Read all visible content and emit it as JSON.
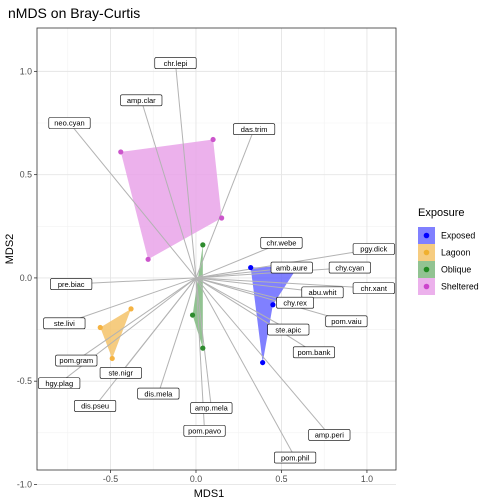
{
  "chart_data": {
    "type": "scatter",
    "title": "nMDS on Bray-Curtis",
    "xlabel": "MDS1",
    "ylabel": "MDS2",
    "xlim": [
      -0.93,
      1.17
    ],
    "ylim": [
      -0.93,
      1.21
    ],
    "xticks": [
      -0.5,
      0.0,
      0.5,
      1.0
    ],
    "xtick_labels": [
      "-0.5",
      "0.0",
      "0.5",
      "1.0"
    ],
    "yticks": [
      -1.0,
      -0.5,
      0.0,
      0.5,
      1.0
    ],
    "ytick_labels": [
      "-1.0",
      "-0.5",
      "0.0",
      "0.5",
      "1.0"
    ],
    "grid": true,
    "legend": {
      "title": "Exposure",
      "placement": "right",
      "entries": [
        {
          "label": "Exposed",
          "color": "#0000ff"
        },
        {
          "label": "Lagoon",
          "color": "#f0b030"
        },
        {
          "label": "Oblique",
          "color": "#228b22"
        },
        {
          "label": "Sheltered",
          "color": "#cc44cc"
        }
      ]
    },
    "series": [
      {
        "name": "Exposed",
        "color": "#0000ff",
        "hull_color": "#6a6aff",
        "points": [
          [
            0.32,
            0.05
          ],
          [
            0.6,
            0.06
          ],
          [
            0.45,
            -0.13
          ],
          [
            0.39,
            -0.41
          ]
        ]
      },
      {
        "name": "Lagoon",
        "color": "#f5b342",
        "hull_color": "#f5c36a",
        "points": [
          [
            -0.38,
            -0.15
          ],
          [
            -0.56,
            -0.24
          ],
          [
            -0.49,
            -0.39
          ]
        ]
      },
      {
        "name": "Oblique",
        "color": "#2e8b2e",
        "hull_color": "#7fb87f",
        "points": [
          [
            0.04,
            0.16
          ],
          [
            -0.02,
            -0.18
          ],
          [
            0.04,
            -0.34
          ]
        ]
      },
      {
        "name": "Sheltered",
        "color": "#cc55cc",
        "hull_color": "#e9a3e9",
        "points": [
          [
            -0.44,
            0.61
          ],
          [
            0.1,
            0.67
          ],
          [
            0.15,
            0.29
          ],
          [
            -0.28,
            0.09
          ]
        ]
      }
    ],
    "species": [
      {
        "label": "chr.lepi",
        "x": -0.12,
        "y": 1.04
      },
      {
        "label": "amp.clar",
        "x": -0.32,
        "y": 0.86
      },
      {
        "label": "neo.cyan",
        "x": -0.74,
        "y": 0.75
      },
      {
        "label": "das.trim",
        "x": 0.34,
        "y": 0.72
      },
      {
        "label": "chr.webe",
        "x": 0.5,
        "y": 0.17
      },
      {
        "label": "pgy.dick",
        "x": 1.04,
        "y": 0.14
      },
      {
        "label": "amb.aure",
        "x": 0.56,
        "y": 0.05
      },
      {
        "label": "chy.cyan",
        "x": 0.9,
        "y": 0.05
      },
      {
        "label": "abu.whit",
        "x": 0.74,
        "y": -0.07
      },
      {
        "label": "chr.xant",
        "x": 1.04,
        "y": -0.05
      },
      {
        "label": "chy.rex",
        "x": 0.58,
        "y": -0.12
      },
      {
        "label": "pom.vaiu",
        "x": 0.88,
        "y": -0.21
      },
      {
        "label": "ste.apic",
        "x": 0.54,
        "y": -0.25
      },
      {
        "label": "pom.bank",
        "x": 0.69,
        "y": -0.36
      },
      {
        "label": "pre.biac",
        "x": -0.73,
        "y": -0.03
      },
      {
        "label": "ste.livi",
        "x": -0.77,
        "y": -0.22
      },
      {
        "label": "pom.gram",
        "x": -0.7,
        "y": -0.4
      },
      {
        "label": "hgy.plag",
        "x": -0.8,
        "y": -0.51
      },
      {
        "label": "ste.nigr",
        "x": -0.44,
        "y": -0.46
      },
      {
        "label": "dis.mela",
        "x": -0.22,
        "y": -0.56
      },
      {
        "label": "dis.pseu",
        "x": -0.59,
        "y": -0.62
      },
      {
        "label": "amp.mela",
        "x": 0.09,
        "y": -0.63
      },
      {
        "label": "pom.pavo",
        "x": 0.05,
        "y": -0.74
      },
      {
        "label": "amp.peri",
        "x": 0.78,
        "y": -0.76
      },
      {
        "label": "pom.phil",
        "x": 0.58,
        "y": -0.87
      }
    ]
  }
}
